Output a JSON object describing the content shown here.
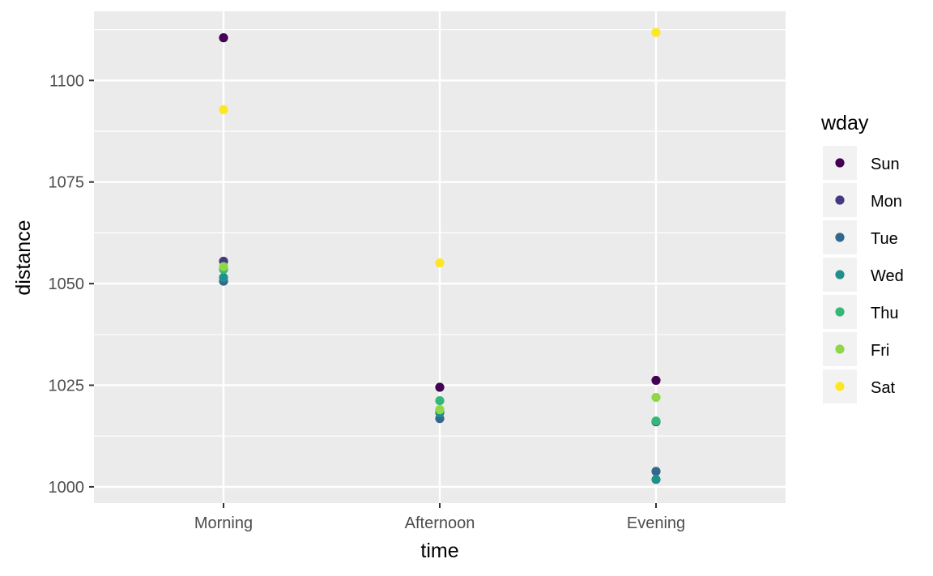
{
  "chart_data": {
    "type": "scatter",
    "xlabel": "time",
    "ylabel": "distance",
    "categories": [
      "Morning",
      "Afternoon",
      "Evening"
    ],
    "ylim": [
      996,
      1117
    ],
    "yticks": [
      1000,
      1025,
      1050,
      1075,
      1100
    ],
    "grid": true,
    "legend": {
      "title": "wday",
      "position": "right"
    },
    "series": [
      {
        "name": "Sun",
        "color": "#440154",
        "values": [
          1110.5,
          1024.5,
          1026.2
        ]
      },
      {
        "name": "Mon",
        "color": "#443A83",
        "values": [
          1055.5,
          1018.5,
          1016.0
        ]
      },
      {
        "name": "Tue",
        "color": "#31688E",
        "values": [
          1050.6,
          1016.8,
          1003.8
        ]
      },
      {
        "name": "Wed",
        "color": "#21908C",
        "values": [
          1051.5,
          1018.2,
          1001.8
        ]
      },
      {
        "name": "Thu",
        "color": "#35B779",
        "values": [
          1053.5,
          1021.2,
          1016.2
        ]
      },
      {
        "name": "Fri",
        "color": "#8FD744",
        "values": [
          1054.2,
          1019.0,
          1022.0
        ]
      },
      {
        "name": "Sat",
        "color": "#FDE725",
        "values": [
          1092.8,
          1055.1,
          1111.8
        ]
      }
    ]
  }
}
